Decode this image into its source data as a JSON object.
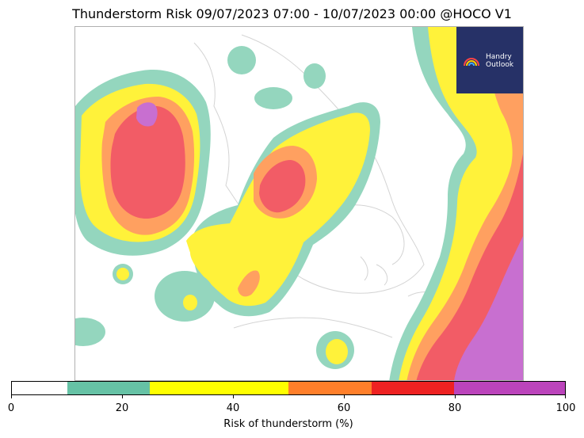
{
  "title": "Thunderstorm Risk 09/07/2023 07:00 - 10/07/2023 00:00 @HOCO V1",
  "logo": {
    "line1": "Handry",
    "line2": "Outlook",
    "icon": "rainbow-icon"
  },
  "colorbar": {
    "label": "Risk of thunderstorm (%)",
    "min": 0,
    "max": 100,
    "ticks": [
      "0",
      "20",
      "40",
      "60",
      "80",
      "100"
    ],
    "bins": [
      {
        "from": 0,
        "to": 10,
        "color": "#ffffff"
      },
      {
        "from": 10,
        "to": 25,
        "color": "#66c2a5"
      },
      {
        "from": 25,
        "to": 50,
        "color": "#ffff00"
      },
      {
        "from": 50,
        "to": 65,
        "color": "#ff7f2a"
      },
      {
        "from": 65,
        "to": 80,
        "color": "#ee2222"
      },
      {
        "from": 80,
        "to": 100,
        "color": "#bb44bb"
      }
    ]
  },
  "map_colors": {
    "low": "#94d6be",
    "moderate": "#fff23a",
    "elevated": "#ffa060",
    "high": "#f25c66",
    "very_high": "#c86fd0",
    "coast": "#cccccc"
  }
}
